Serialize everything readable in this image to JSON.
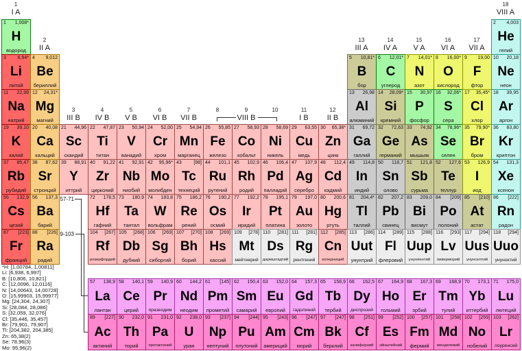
{
  "colors": {
    "alk": {
      "bg": "#ff6666",
      "bd": "#a50000"
    },
    "ae": {
      "bg": "#f8ce85",
      "bd": "#a77408"
    },
    "tm": {
      "bg": "#ffc0c0",
      "bd": "#9e4a4a"
    },
    "pm": {
      "bg": "#cccccc",
      "bd": "#686868"
    },
    "md": {
      "bg": "#cccc99",
      "bd": "#73734a"
    },
    "nm": {
      "bg": "#a4f7a4",
      "bd": "#117a11"
    },
    "hal": {
      "bg": "#eef76d",
      "bd": "#8a9400"
    },
    "ng": {
      "bg": "#c2f7f0",
      "bd": "#2a948a"
    },
    "lan": {
      "bg": "#f7a7f7",
      "bd": "#a434a4"
    },
    "act": {
      "bg": "#ff87cf",
      "bd": "#b01c71"
    },
    "unk": {
      "bg": "#ededed",
      "bd": "#909090"
    }
  },
  "group_headers": {
    "top": [
      {
        "g": 1,
        "num": "1",
        "label": "I A"
      },
      {
        "g": 18,
        "num": "18",
        "label": "VIII A"
      }
    ],
    "row2": [
      {
        "g": 2,
        "num": "2",
        "label": "II A"
      },
      {
        "g": 13,
        "num": "13",
        "label": "III A"
      },
      {
        "g": 14,
        "num": "14",
        "label": "IV A"
      },
      {
        "g": 15,
        "num": "15",
        "label": "V A"
      },
      {
        "g": 16,
        "num": "16",
        "label": "VI A"
      },
      {
        "g": 17,
        "num": "17",
        "label": "VII A"
      }
    ],
    "row4": [
      {
        "g": 3,
        "num": "3",
        "label": "III B"
      },
      {
        "g": 4,
        "num": "4",
        "label": "IV B"
      },
      {
        "g": 5,
        "num": "5",
        "label": "V B"
      },
      {
        "g": 6,
        "num": "6",
        "label": "VI B"
      },
      {
        "g": 7,
        "num": "7",
        "label": "VII B"
      },
      {
        "g": 8,
        "num": "8",
        "label": ""
      },
      {
        "g": 9,
        "num": "9",
        "label": "VIII B"
      },
      {
        "g": 10,
        "num": "10",
        "label": ""
      },
      {
        "g": 11,
        "num": "11",
        "label": "I B"
      },
      {
        "g": 12,
        "num": "12",
        "label": "II B"
      }
    ]
  },
  "placeholders": {
    "lan": "57-71",
    "act": "89-103"
  },
  "elements": [
    {
      "n": 1,
      "s": "H",
      "m": "1,008*",
      "name": "водород",
      "c": "nm",
      "p": 1,
      "g": 1
    },
    {
      "n": 2,
      "s": "He",
      "m": "4,003",
      "name": "гелий",
      "c": "ng",
      "p": 1,
      "g": 18
    },
    {
      "n": 3,
      "s": "Li",
      "m": "6,94*",
      "name": "литий",
      "c": "alk",
      "p": 2,
      "g": 1
    },
    {
      "n": 4,
      "s": "Be",
      "m": "9,012",
      "name": "бериллий",
      "c": "ae",
      "p": 2,
      "g": 2
    },
    {
      "n": 5,
      "s": "B",
      "m": "10,81*",
      "name": "бор",
      "c": "md",
      "p": 2,
      "g": 13
    },
    {
      "n": 6,
      "s": "C",
      "m": "12,01*",
      "name": "углерод",
      "c": "nm",
      "p": 2,
      "g": 14
    },
    {
      "n": 7,
      "s": "N",
      "m": "14,01*",
      "name": "азот",
      "c": "hal",
      "p": 2,
      "g": 15
    },
    {
      "n": 8,
      "s": "O",
      "m": "16,00*",
      "name": "кислород",
      "c": "hal",
      "p": 2,
      "g": 16
    },
    {
      "n": 9,
      "s": "F",
      "m": "19,00",
      "name": "фтор",
      "c": "hal",
      "p": 2,
      "g": 17
    },
    {
      "n": 10,
      "s": "Ne",
      "m": "20,18",
      "name": "неон",
      "c": "ng",
      "p": 2,
      "g": 18
    },
    {
      "n": 11,
      "s": "Na",
      "m": "22,99",
      "name": "натрий",
      "c": "alk",
      "p": 3,
      "g": 1
    },
    {
      "n": 12,
      "s": "Mg",
      "m": "24,31*",
      "name": "магний",
      "c": "ae",
      "p": 3,
      "g": 2
    },
    {
      "n": 13,
      "s": "Al",
      "m": "26,98",
      "name": "алюминий",
      "c": "pm",
      "p": 3,
      "g": 13
    },
    {
      "n": 14,
      "s": "Si",
      "m": "28,09*",
      "name": "кремний",
      "c": "md",
      "p": 3,
      "g": 14
    },
    {
      "n": 15,
      "s": "P",
      "m": "30,97",
      "name": "фосфор",
      "c": "nm",
      "p": 3,
      "g": 15
    },
    {
      "n": 16,
      "s": "S",
      "m": "32,06*",
      "name": "сера",
      "c": "nm",
      "p": 3,
      "g": 16
    },
    {
      "n": 17,
      "s": "Cl",
      "m": "35,45*",
      "name": "хлор",
      "c": "hal",
      "p": 3,
      "g": 17
    },
    {
      "n": 18,
      "s": "Ar",
      "m": "39,95",
      "name": "аргон",
      "c": "ng",
      "p": 3,
      "g": 18
    },
    {
      "n": 19,
      "s": "K",
      "m": "39,10",
      "name": "калий",
      "c": "alk",
      "p": 4,
      "g": 1
    },
    {
      "n": 20,
      "s": "Ca",
      "m": "40,08",
      "name": "кальций",
      "c": "ae",
      "p": 4,
      "g": 2
    },
    {
      "n": 21,
      "s": "Sc",
      "m": "44,96",
      "name": "скандий",
      "c": "tm",
      "p": 4,
      "g": 3
    },
    {
      "n": 22,
      "s": "Ti",
      "m": "47,87",
      "name": "титан",
      "c": "tm",
      "p": 4,
      "g": 4
    },
    {
      "n": 23,
      "s": "V",
      "m": "50,94",
      "name": "ванадий",
      "c": "tm",
      "p": 4,
      "g": 5
    },
    {
      "n": 24,
      "s": "Cr",
      "m": "52,00",
      "name": "хром",
      "c": "tm",
      "p": 4,
      "g": 6
    },
    {
      "n": 25,
      "s": "Mn",
      "m": "54,94",
      "name": "марганец",
      "c": "tm",
      "p": 4,
      "g": 7
    },
    {
      "n": 26,
      "s": "Fe",
      "m": "55,85",
      "name": "железо",
      "c": "tm",
      "p": 4,
      "g": 8
    },
    {
      "n": 27,
      "s": "Co",
      "m": "58,93",
      "name": "кобальт",
      "c": "tm",
      "p": 4,
      "g": 9
    },
    {
      "n": 28,
      "s": "Ni",
      "m": "58,69",
      "name": "никель",
      "c": "tm",
      "p": 4,
      "g": 10
    },
    {
      "n": 29,
      "s": "Cu",
      "m": "63,55",
      "name": "медь",
      "c": "tm",
      "p": 4,
      "g": 11
    },
    {
      "n": 30,
      "s": "Zn",
      "m": "65,38*",
      "name": "цинк",
      "c": "tm",
      "p": 4,
      "g": 12
    },
    {
      "n": 31,
      "s": "Ga",
      "m": "69,72",
      "name": "галлий",
      "c": "pm",
      "p": 4,
      "g": 13
    },
    {
      "n": 32,
      "s": "Ge",
      "m": "72,63",
      "name": "германий",
      "c": "md",
      "p": 4,
      "g": 14
    },
    {
      "n": 33,
      "s": "As",
      "m": "74,92",
      "name": "мышьяк",
      "c": "md",
      "p": 4,
      "g": 15
    },
    {
      "n": 34,
      "s": "Se",
      "m": "78,96*",
      "name": "селен",
      "c": "nm",
      "p": 4,
      "g": 16
    },
    {
      "n": 35,
      "s": "Br",
      "m": "79,90*",
      "name": "бром",
      "c": "hal",
      "p": 4,
      "g": 17
    },
    {
      "n": 36,
      "s": "Kr",
      "m": "83,80",
      "name": "криптон",
      "c": "ng",
      "p": 4,
      "g": 18
    },
    {
      "n": 37,
      "s": "Rb",
      "m": "85,47",
      "name": "рубидий",
      "c": "alk",
      "p": 5,
      "g": 1
    },
    {
      "n": 38,
      "s": "Sr",
      "m": "87,62",
      "name": "стронций",
      "c": "ae",
      "p": 5,
      "g": 2
    },
    {
      "n": 39,
      "s": "Y",
      "m": "88,91",
      "name": "иттрий",
      "c": "tm",
      "p": 5,
      "g": 3
    },
    {
      "n": 40,
      "s": "Zr",
      "m": "91,22",
      "name": "цирконий",
      "c": "tm",
      "p": 5,
      "g": 4
    },
    {
      "n": 41,
      "s": "Nb",
      "m": "92,91",
      "name": "ниобий",
      "c": "tm",
      "p": 5,
      "g": 5
    },
    {
      "n": 42,
      "s": "Mo",
      "m": "95,96*",
      "name": "молибден",
      "c": "tm",
      "p": 5,
      "g": 6
    },
    {
      "n": 43,
      "s": "Tc",
      "m": "[98]",
      "name": "технеций",
      "c": "tm",
      "p": 5,
      "g": 7
    },
    {
      "n": 44,
      "s": "Ru",
      "m": "101,1",
      "name": "рутений",
      "c": "tm",
      "p": 5,
      "g": 8
    },
    {
      "n": 45,
      "s": "Rh",
      "m": "102,9",
      "name": "родий",
      "c": "tm",
      "p": 5,
      "g": 9
    },
    {
      "n": 46,
      "s": "Pd",
      "m": "106,4",
      "name": "палладий",
      "c": "tm",
      "p": 5,
      "g": 10
    },
    {
      "n": 47,
      "s": "Ag",
      "m": "107,9",
      "name": "серебро",
      "c": "tm",
      "p": 5,
      "g": 11
    },
    {
      "n": 48,
      "s": "Cd",
      "m": "112,4",
      "name": "кадмий",
      "c": "tm",
      "p": 5,
      "g": 12
    },
    {
      "n": 49,
      "s": "In",
      "m": "114,8",
      "name": "индий",
      "c": "pm",
      "p": 5,
      "g": 13
    },
    {
      "n": 50,
      "s": "Sn",
      "m": "118,7",
      "name": "олово",
      "c": "pm",
      "p": 5,
      "g": 14
    },
    {
      "n": 51,
      "s": "Sb",
      "m": "121,8",
      "name": "сурьма",
      "c": "md",
      "p": 5,
      "g": 15
    },
    {
      "n": 52,
      "s": "Te",
      "m": "127,6",
      "name": "теллур",
      "c": "md",
      "p": 5,
      "g": 16
    },
    {
      "n": 53,
      "s": "I",
      "m": "126,9",
      "name": "иод",
      "c": "hal",
      "p": 5,
      "g": 17
    },
    {
      "n": 54,
      "s": "Xe",
      "m": "131,3",
      "name": "ксенон",
      "c": "ng",
      "p": 5,
      "g": 18
    },
    {
      "n": 55,
      "s": "Cs",
      "m": "132,9",
      "name": "цезий",
      "c": "alk",
      "p": 6,
      "g": 1
    },
    {
      "n": 56,
      "s": "Ba",
      "m": "137,3",
      "name": "барий",
      "c": "ae",
      "p": 6,
      "g": 2
    },
    {
      "n": 72,
      "s": "Hf",
      "m": "178,5",
      "name": "гафний",
      "c": "tm",
      "p": 6,
      "g": 4
    },
    {
      "n": 73,
      "s": "Ta",
      "m": "180,9",
      "name": "тантал",
      "c": "tm",
      "p": 6,
      "g": 5
    },
    {
      "n": 74,
      "s": "W",
      "m": "183,8",
      "name": "вольфрам",
      "c": "tm",
      "p": 6,
      "g": 6
    },
    {
      "n": 75,
      "s": "Re",
      "m": "186,2",
      "name": "рений",
      "c": "tm",
      "p": 6,
      "g": 7
    },
    {
      "n": 76,
      "s": "Os",
      "m": "190,2",
      "name": "осмий",
      "c": "tm",
      "p": 6,
      "g": 8
    },
    {
      "n": 77,
      "s": "Ir",
      "m": "192,2",
      "name": "иридий",
      "c": "tm",
      "p": 6,
      "g": 9
    },
    {
      "n": 78,
      "s": "Pt",
      "m": "195,1",
      "name": "платина",
      "c": "tm",
      "p": 6,
      "g": 10
    },
    {
      "n": 79,
      "s": "Au",
      "m": "197,0",
      "name": "золото",
      "c": "tm",
      "p": 6,
      "g": 11
    },
    {
      "n": 80,
      "s": "Hg",
      "m": "200,6",
      "name": "ртуть",
      "c": "tm",
      "p": 6,
      "g": 12
    },
    {
      "n": 81,
      "s": "Tl",
      "m": "204,4*",
      "name": "таллий",
      "c": "pm",
      "p": 6,
      "g": 13
    },
    {
      "n": 82,
      "s": "Pb",
      "m": "207,2",
      "name": "свинец",
      "c": "pm",
      "p": 6,
      "g": 14
    },
    {
      "n": 83,
      "s": "Bi",
      "m": "209,0",
      "name": "висмут",
      "c": "pm",
      "p": 6,
      "g": 15
    },
    {
      "n": 84,
      "s": "Po",
      "m": "[209]",
      "name": "полоний",
      "c": "pm",
      "p": 6,
      "g": 16
    },
    {
      "n": 85,
      "s": "At",
      "m": "[210]",
      "name": "астат",
      "c": "md",
      "p": 6,
      "g": 17
    },
    {
      "n": 86,
      "s": "Rn",
      "m": "[222]",
      "name": "радон",
      "c": "ng",
      "p": 6,
      "g": 18
    },
    {
      "n": 87,
      "s": "Fr",
      "m": "[223]",
      "name": "франций",
      "c": "alk",
      "p": 7,
      "g": 1
    },
    {
      "n": 88,
      "s": "Ra",
      "m": "[226]",
      "name": "радий",
      "c": "ae",
      "p": 7,
      "g": 2
    },
    {
      "n": 104,
      "s": "Rf",
      "m": "[267]",
      "name": "резерфордий",
      "c": "tm",
      "p": 7,
      "g": 4
    },
    {
      "n": 105,
      "s": "Db",
      "m": "[268]",
      "name": "дубний",
      "c": "tm",
      "p": 7,
      "g": 5
    },
    {
      "n": 106,
      "s": "Sg",
      "m": "[269]",
      "name": "сиборгий",
      "c": "tm",
      "p": 7,
      "g": 6
    },
    {
      "n": 107,
      "s": "Bh",
      "m": "[270]",
      "name": "борий",
      "c": "tm",
      "p": 7,
      "g": 7
    },
    {
      "n": 108,
      "s": "Hs",
      "m": "[269]",
      "name": "хассий",
      "c": "tm",
      "p": 7,
      "g": 8
    },
    {
      "n": 109,
      "s": "Mt",
      "m": "[278]",
      "name": "мейтнерий",
      "c": "unk",
      "p": 7,
      "g": 9
    },
    {
      "n": 110,
      "s": "Ds",
      "m": "[281]",
      "name": "дармштадтий",
      "c": "unk",
      "p": 7,
      "g": 10
    },
    {
      "n": 111,
      "s": "Rg",
      "m": "[281]",
      "name": "рентгений",
      "c": "unk",
      "p": 7,
      "g": 11
    },
    {
      "n": 112,
      "s": "Cn",
      "m": "[285]",
      "name": "коперниций",
      "c": "tm",
      "p": 7,
      "g": 12
    },
    {
      "n": 113,
      "s": "Uut",
      "m": "[286]",
      "name": "унунтрий",
      "c": "unk",
      "p": 7,
      "g": 13
    },
    {
      "n": 114,
      "s": "Fl",
      "m": "[289]",
      "name": "флеровий",
      "c": "unk",
      "p": 7,
      "g": 14
    },
    {
      "n": 115,
      "s": "Uup",
      "m": "[288]",
      "name": "унунпентий",
      "c": "unk",
      "p": 7,
      "g": 15
    },
    {
      "n": 116,
      "s": "Lv",
      "m": "[293]",
      "name": "ливерморий",
      "c": "unk",
      "p": 7,
      "g": 16
    },
    {
      "n": 117,
      "s": "Uus",
      "m": "[294]",
      "name": "унунсептий",
      "c": "unk",
      "p": 7,
      "g": 17
    },
    {
      "n": 118,
      "s": "Uuo",
      "m": "[294]",
      "name": "унуноктий",
      "c": "unk",
      "p": 7,
      "g": 18
    },
    {
      "n": 57,
      "s": "La",
      "m": "138,9",
      "name": "лантан",
      "c": "lan",
      "p": "L",
      "g": 4
    },
    {
      "n": 58,
      "s": "Ce",
      "m": "140,1",
      "name": "церий",
      "c": "lan",
      "p": "L",
      "g": 5
    },
    {
      "n": 59,
      "s": "Pr",
      "m": "140,9",
      "name": "празеодим",
      "c": "lan",
      "p": "L",
      "g": 6
    },
    {
      "n": 60,
      "s": "Nd",
      "m": "144,2",
      "name": "неодим",
      "c": "lan",
      "p": "L",
      "g": 7
    },
    {
      "n": 61,
      "s": "Pm",
      "m": "[145]",
      "name": "прометий",
      "c": "lan",
      "p": "L",
      "g": 8
    },
    {
      "n": 62,
      "s": "Sm",
      "m": "150,4",
      "name": "самарий",
      "c": "lan",
      "p": "L",
      "g": 9
    },
    {
      "n": 63,
      "s": "Eu",
      "m": "152,0",
      "name": "европий",
      "c": "lan",
      "p": "L",
      "g": 10
    },
    {
      "n": 64,
      "s": "Gd",
      "m": "157,3",
      "name": "гадолиний",
      "c": "lan",
      "p": "L",
      "g": 11
    },
    {
      "n": 65,
      "s": "Tb",
      "m": "158,9",
      "name": "тербий",
      "c": "lan",
      "p": "L",
      "g": 12
    },
    {
      "n": 66,
      "s": "Dy",
      "m": "162,5",
      "name": "диспрозий",
      "c": "lan",
      "p": "L",
      "g": 13
    },
    {
      "n": 67,
      "s": "Ho",
      "m": "164,9",
      "name": "гольмий",
      "c": "lan",
      "p": "L",
      "g": 14
    },
    {
      "n": 68,
      "s": "Er",
      "m": "167,3",
      "name": "эрбий",
      "c": "lan",
      "p": "L",
      "g": 15
    },
    {
      "n": 69,
      "s": "Tm",
      "m": "168,9",
      "name": "тулий",
      "c": "lan",
      "p": "L",
      "g": 16
    },
    {
      "n": 70,
      "s": "Yb",
      "m": "173,1",
      "name": "иттербий",
      "c": "lan",
      "p": "L",
      "g": 17
    },
    {
      "n": 71,
      "s": "Lu",
      "m": "175,0",
      "name": "лютеций",
      "c": "lan",
      "p": "L",
      "g": 18
    },
    {
      "n": 89,
      "s": "Ac",
      "m": "[227]",
      "name": "актиний",
      "c": "act",
      "p": "A",
      "g": 4
    },
    {
      "n": 90,
      "s": "Th",
      "m": "232,0",
      "name": "торий",
      "c": "act",
      "p": "A",
      "g": 5
    },
    {
      "n": 91,
      "s": "Pa",
      "m": "231,0",
      "name": "протактиний",
      "c": "act",
      "p": "A",
      "g": 6
    },
    {
      "n": 92,
      "s": "U",
      "m": "238,0",
      "name": "уран",
      "c": "act",
      "p": "A",
      "g": 7
    },
    {
      "n": 93,
      "s": "Np",
      "m": "[237]",
      "name": "нептуний",
      "c": "act",
      "p": "A",
      "g": 8
    },
    {
      "n": 94,
      "s": "Pu",
      "m": "[244]",
      "name": "плутоний",
      "c": "act",
      "p": "A",
      "g": 9
    },
    {
      "n": 95,
      "s": "Am",
      "m": "[243]",
      "name": "америций",
      "c": "act",
      "p": "A",
      "g": 10
    },
    {
      "n": 96,
      "s": "Cm",
      "m": "[247]",
      "name": "кюрий",
      "c": "act",
      "p": "A",
      "g": 11
    },
    {
      "n": 97,
      "s": "Bk",
      "m": "[247]",
      "name": "берклий",
      "c": "act",
      "p": "A",
      "g": 12
    },
    {
      "n": 98,
      "s": "Cf",
      "m": "[251]",
      "name": "калифорний",
      "c": "act",
      "p": "A",
      "g": 13
    },
    {
      "n": 99,
      "s": "Es",
      "m": "[252]",
      "name": "эйнштейний",
      "c": "act",
      "p": "A",
      "g": 14
    },
    {
      "n": 100,
      "s": "Fm",
      "m": "[257]",
      "name": "фермий",
      "c": "act",
      "p": "A",
      "g": 15
    },
    {
      "n": 101,
      "s": "Md",
      "m": "[258]",
      "name": "менделевий",
      "c": "act",
      "p": "A",
      "g": 16
    },
    {
      "n": 102,
      "s": "No",
      "m": "[259]",
      "name": "нобелий",
      "c": "act",
      "p": "A",
      "g": 17
    },
    {
      "n": 103,
      "s": "Lr",
      "m": "[262]",
      "name": "лоуренсий",
      "c": "act",
      "p": "A",
      "g": 18
    }
  ],
  "footnote": {
    "lines": [
      "*H: [1,00784, 1,00811]",
      "Li: [6,938, 6,997]",
      "B: [10,806, 10,821]",
      "C: [12,0096, 12,0116]",
      "N: [14,00643, 14,00728]",
      "O: [15,99903, 15,99977]",
      "Mg: [24,304, 24,307]",
      "Si: [28,084, 28,086]",
      "S: [32,059, 32,076]",
      "Cl: [35,446, 35,457]",
      "Br: [79,901, 79,907]",
      "Tl: [204,382, 204,385]",
      "Zn: 65,38(2)",
      "Se: 78,96(3)",
      "Mo: 95,96(2)"
    ]
  }
}
